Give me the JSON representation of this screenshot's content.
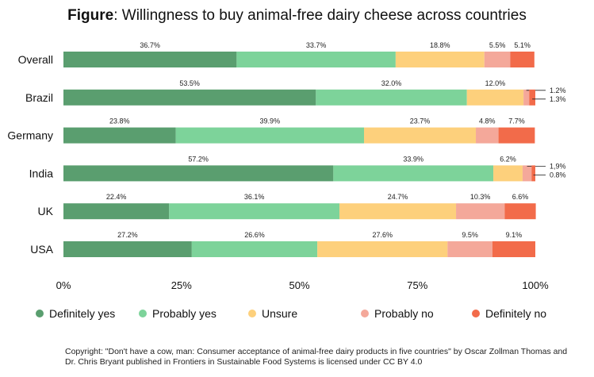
{
  "title_bold": "Figure",
  "title_rest": ": Willingness to buy animal-free dairy cheese across countries",
  "chart_data": {
    "type": "bar",
    "orientation": "horizontal",
    "stacked": true,
    "title": "Figure: Willingness to buy animal-free dairy cheese across countries",
    "categories": [
      "Overall",
      "Brazil",
      "Germany",
      "India",
      "UK",
      "USA"
    ],
    "series": [
      {
        "name": "Definitely yes",
        "color": "#5a9e6f",
        "values": [
          36.7,
          53.5,
          23.8,
          57.2,
          22.4,
          27.2
        ],
        "labels": [
          "36.7%",
          "53.5%",
          "23.8%",
          "57.2%",
          "22.4%",
          "27.2%"
        ]
      },
      {
        "name": "Probably yes",
        "color": "#7dd39a",
        "values": [
          33.7,
          32.0,
          39.9,
          33.9,
          36.1,
          26.6
        ],
        "labels": [
          "33.7%",
          "32.0%",
          "39.9%",
          "33.9%",
          "36.1%",
          "26.6%"
        ]
      },
      {
        "name": "Unsure",
        "color": "#fdd07c",
        "values": [
          18.8,
          12.0,
          23.7,
          6.2,
          24.7,
          27.6
        ],
        "labels": [
          "18.8%",
          "12.0%",
          "23.7%",
          "6.2%",
          "24.7%",
          "27.6%"
        ]
      },
      {
        "name": "Probably no",
        "color": "#f4a89a",
        "values": [
          5.5,
          1.2,
          4.8,
          1.9,
          10.3,
          9.5
        ],
        "labels": [
          "5.5%",
          "1.2%",
          "4.8%",
          "1,9%",
          "10.3%",
          "9.5%"
        ]
      },
      {
        "name": "Definitely no",
        "color": "#f26b4a",
        "values": [
          5.1,
          1.3,
          7.7,
          0.8,
          6.6,
          9.1
        ],
        "labels": [
          "5.1%",
          "1.3%",
          "7.7%",
          "0.8%",
          "6.6%",
          "9.1%"
        ]
      }
    ],
    "xlim": [
      0,
      100
    ],
    "xticks": [
      "0%",
      "25%",
      "50%",
      "75%",
      "100%"
    ],
    "xlabel": "",
    "ylabel": "",
    "legend_position": "bottom"
  },
  "copyright": "Copyright: \"Don't have a cow, man: Consumer acceptance of animal-free dairy products in five countries\" by Oscar Zollman Thomas and Dr. Chris Bryant published in Frontiers in Sustainable Food Systems is licensed under CC BY 4.0"
}
